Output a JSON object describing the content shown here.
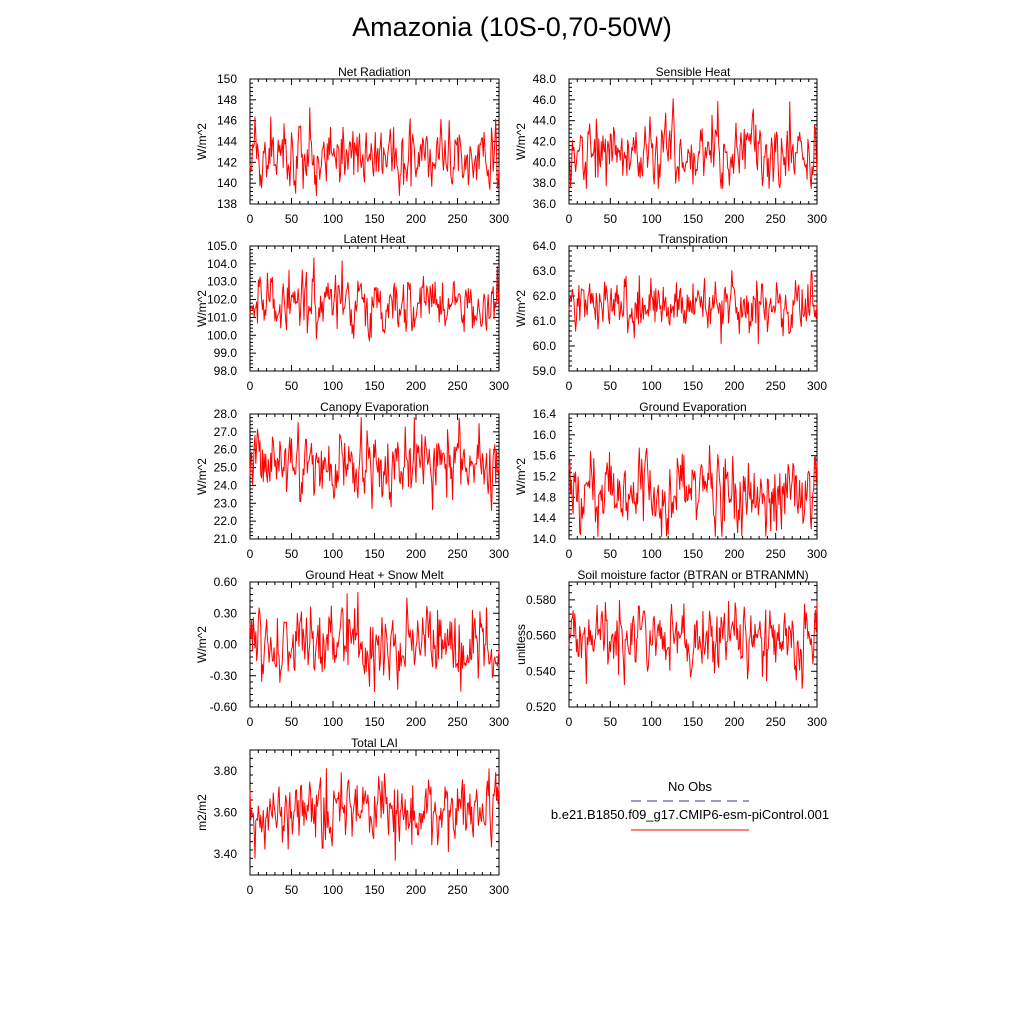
{
  "title": "Amazonia (10S-0,70-50W)",
  "colors": {
    "series": "#ff0000",
    "obs": "#3a3a8a",
    "axis": "#000000"
  },
  "legend": {
    "obs_label": "No Obs",
    "model_label": "b.e21.B1850.f09_g17.CMIP6-esm-piControl.001"
  },
  "chart_data": [
    {
      "id": "net_radiation",
      "type": "line",
      "title": "Net Radiation",
      "ylabel": "W/m^2",
      "xlim": [
        0,
        300
      ],
      "xticks": [
        0,
        50,
        100,
        150,
        200,
        250,
        300
      ],
      "ylim": [
        138,
        150
      ],
      "yticks": [
        138,
        140,
        142,
        144,
        146,
        148,
        150
      ],
      "ytick_labels": [
        "138",
        "140",
        "142",
        "144",
        "146",
        "148",
        "150"
      ],
      "series": [
        {
          "name": "b.e21.B1850.f09_g17.CMIP6-esm-piControl.001",
          "mean": 142.6,
          "sd": 1.7,
          "min": 138.5,
          "max": 148.5
        }
      ]
    },
    {
      "id": "sensible_heat",
      "type": "line",
      "title": "Sensible Heat",
      "ylabel": "W/m^2",
      "xlim": [
        0,
        300
      ],
      "xticks": [
        0,
        50,
        100,
        150,
        200,
        250,
        300
      ],
      "ylim": [
        36,
        48
      ],
      "yticks": [
        36,
        38,
        40,
        42,
        44,
        46,
        48
      ],
      "ytick_labels": [
        "36.0",
        "38.0",
        "40.0",
        "42.0",
        "44.0",
        "46.0",
        "48.0"
      ],
      "series": [
        {
          "name": "b.e21.B1850.f09_g17.CMIP6-esm-piControl.001",
          "mean": 41.0,
          "sd": 1.7,
          "min": 37.5,
          "max": 47.6
        }
      ]
    },
    {
      "id": "latent_heat",
      "type": "line",
      "title": "Latent Heat",
      "ylabel": "W/m^2",
      "xlim": [
        0,
        300
      ],
      "xticks": [
        0,
        50,
        100,
        150,
        200,
        250,
        300
      ],
      "ylim": [
        98,
        105
      ],
      "yticks": [
        98,
        99,
        100,
        101,
        102,
        103,
        104,
        105
      ],
      "ytick_labels": [
        "98.0",
        "99.0",
        "100.0",
        "101.0",
        "102.0",
        "103.0",
        "104.0",
        "105.0"
      ],
      "series": [
        {
          "name": "b.e21.B1850.f09_g17.CMIP6-esm-piControl.001",
          "mean": 101.6,
          "sd": 0.85,
          "min": 98.9,
          "max": 104.4
        }
      ]
    },
    {
      "id": "transpiration",
      "type": "line",
      "title": "Transpiration",
      "ylabel": "W/m^2",
      "xlim": [
        0,
        300
      ],
      "xticks": [
        0,
        50,
        100,
        150,
        200,
        250,
        300
      ],
      "ylim": [
        59,
        64
      ],
      "yticks": [
        59,
        60,
        61,
        62,
        63,
        64
      ],
      "ytick_labels": [
        "59.0",
        "60.0",
        "61.0",
        "62.0",
        "63.0",
        "64.0"
      ],
      "series": [
        {
          "name": "b.e21.B1850.f09_g17.CMIP6-esm-piControl.001",
          "mean": 61.7,
          "sd": 0.55,
          "min": 60.1,
          "max": 63.4
        }
      ]
    },
    {
      "id": "canopy_evaporation",
      "type": "line",
      "title": "Canopy Evaporation",
      "ylabel": "W/m^2",
      "xlim": [
        0,
        300
      ],
      "xticks": [
        0,
        50,
        100,
        150,
        200,
        250,
        300
      ],
      "ylim": [
        21,
        28
      ],
      "yticks": [
        21,
        22,
        23,
        24,
        25,
        26,
        27,
        28
      ],
      "ytick_labels": [
        "21.0",
        "22.0",
        "23.0",
        "24.0",
        "25.0",
        "26.0",
        "27.0",
        "28.0"
      ],
      "series": [
        {
          "name": "b.e21.B1850.f09_g17.CMIP6-esm-piControl.001",
          "mean": 25.0,
          "sd": 0.95,
          "min": 21.8,
          "max": 27.8
        }
      ]
    },
    {
      "id": "ground_evaporation",
      "type": "line",
      "title": "Ground Evaporation",
      "ylabel": "W/m^2",
      "xlim": [
        0,
        300
      ],
      "xticks": [
        0,
        50,
        100,
        150,
        200,
        250,
        300
      ],
      "ylim": [
        14,
        16.4
      ],
      "yticks": [
        14,
        14.4,
        14.8,
        15.2,
        15.6,
        16,
        16.4
      ],
      "ytick_labels": [
        "14.0",
        "14.4",
        "14.8",
        "15.2",
        "15.6",
        "16.0",
        "16.4"
      ],
      "series": [
        {
          "name": "b.e21.B1850.f09_g17.CMIP6-esm-piControl.001",
          "mean": 14.9,
          "sd": 0.38,
          "min": 14.05,
          "max": 16.3
        }
      ]
    },
    {
      "id": "ground_heat_snow_melt",
      "type": "line",
      "title": "Ground Heat + Snow Melt",
      "ylabel": "W/m^2",
      "xlim": [
        0,
        300
      ],
      "xticks": [
        0,
        50,
        100,
        150,
        200,
        250,
        300
      ],
      "ylim": [
        -0.6,
        0.6
      ],
      "yticks": [
        -0.6,
        -0.3,
        0,
        0.3,
        0.6
      ],
      "ytick_labels": [
        "-0.60",
        "-0.30",
        "0.00",
        "0.30",
        "0.60"
      ],
      "series": [
        {
          "name": "b.e21.B1850.f09_g17.CMIP6-esm-piControl.001",
          "mean": 0.0,
          "sd": 0.17,
          "min": -0.45,
          "max": 0.5
        }
      ]
    },
    {
      "id": "soil_moisture_factor",
      "type": "line",
      "title": "Soil moisture factor (BTRAN or BTRANMN)",
      "ylabel": "unitless",
      "xlim": [
        0,
        300
      ],
      "xticks": [
        0,
        50,
        100,
        150,
        200,
        250,
        300
      ],
      "ylim": [
        0.52,
        0.59
      ],
      "yticks": [
        0.52,
        0.54,
        0.56,
        0.58
      ],
      "ytick_labels": [
        "0.520",
        "0.540",
        "0.560",
        "0.580"
      ],
      "series": [
        {
          "name": "b.e21.B1850.f09_g17.CMIP6-esm-piControl.001",
          "mean": 0.559,
          "sd": 0.0095,
          "min": 0.522,
          "max": 0.584
        }
      ]
    },
    {
      "id": "total_lai",
      "type": "line",
      "title": "Total LAI",
      "ylabel": "m2/m2",
      "xlim": [
        0,
        300
      ],
      "xticks": [
        0,
        50,
        100,
        150,
        200,
        250,
        300
      ],
      "ylim": [
        3.3,
        3.9
      ],
      "yticks": [
        3.4,
        3.6,
        3.8
      ],
      "ytick_labels": [
        "3.40",
        "3.60",
        "3.80"
      ],
      "series": [
        {
          "name": "b.e21.B1850.f09_g17.CMIP6-esm-piControl.001",
          "mean": 3.61,
          "sd": 0.085,
          "min": 3.37,
          "max": 3.81
        }
      ]
    }
  ]
}
